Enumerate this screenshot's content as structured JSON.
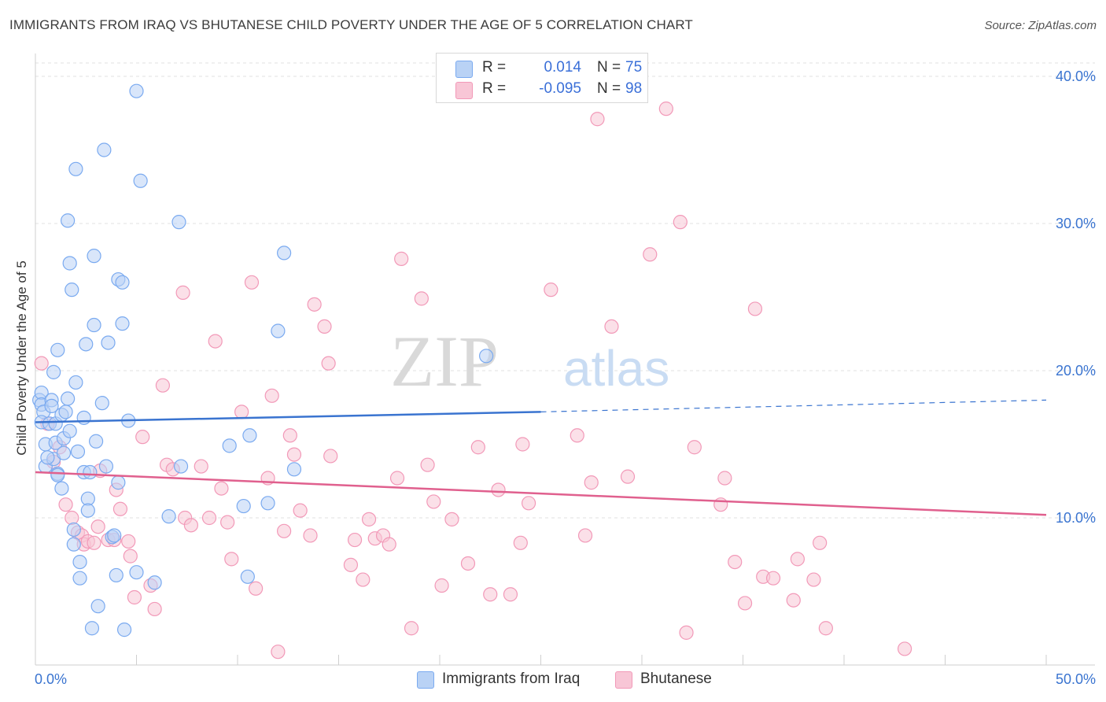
{
  "chart_data": {
    "type": "scatter",
    "title": "IMMIGRANTS FROM IRAQ VS BHUTANESE CHILD POVERTY UNDER THE AGE OF 5 CORRELATION CHART",
    "source": "Source: ZipAtlas.com",
    "xlabel": "",
    "ylabel": "Child Poverty Under the Age of 5",
    "xlim": [
      0,
      50
    ],
    "ylim": [
      0,
      40
    ],
    "x_tick_labels": {
      "min": "0.0%",
      "max": "50.0%"
    },
    "y_ticks": [
      {
        "value": 10,
        "label": "10.0%"
      },
      {
        "value": 20,
        "label": "20.0%"
      },
      {
        "value": 30,
        "label": "30.0%"
      },
      {
        "value": 40,
        "label": "40.0%"
      }
    ],
    "watermark": {
      "part1": "ZIP",
      "part2": "atlas"
    },
    "legend_stats": [
      {
        "series": "Immigrants from Iraq",
        "r_label": "R =",
        "r": "0.014",
        "n_label": "N =",
        "n": "75",
        "color": "#7aaaf0"
      },
      {
        "series": "Bhutanese",
        "r_label": "R =",
        "r": "-0.095",
        "n_label": "N =",
        "n": "98",
        "color": "#f299b8"
      }
    ],
    "series": [
      {
        "name": "Immigrants from Iraq",
        "fill": "#b9d2f5",
        "stroke": "#7aaaf0",
        "line_color": "#3a74d0",
        "trend": {
          "x0": 0,
          "y0": 16.5,
          "x1": 25,
          "y1": 17.2,
          "dash_x1": 50,
          "dash_y1": 18.0
        },
        "points": [
          [
            0.2,
            18.0
          ],
          [
            0.3,
            18.5
          ],
          [
            0.3,
            17.7
          ],
          [
            0.4,
            17.2
          ],
          [
            0.3,
            16.5
          ],
          [
            0.5,
            15.0
          ],
          [
            0.5,
            13.5
          ],
          [
            0.7,
            16.4
          ],
          [
            0.8,
            18.0
          ],
          [
            0.8,
            17.6
          ],
          [
            0.9,
            19.9
          ],
          [
            0.9,
            14.0
          ],
          [
            1.0,
            16.4
          ],
          [
            1.0,
            15.1
          ],
          [
            1.1,
            13.0
          ],
          [
            1.1,
            12.9
          ],
          [
            1.1,
            21.4
          ],
          [
            1.3,
            17.0
          ],
          [
            1.3,
            12.0
          ],
          [
            1.4,
            15.4
          ],
          [
            1.4,
            14.4
          ],
          [
            1.5,
            17.2
          ],
          [
            1.6,
            18.1
          ],
          [
            1.6,
            30.2
          ],
          [
            1.7,
            27.3
          ],
          [
            1.7,
            15.9
          ],
          [
            1.8,
            25.5
          ],
          [
            1.9,
            9.2
          ],
          [
            1.9,
            8.2
          ],
          [
            2.0,
            33.7
          ],
          [
            2.0,
            19.2
          ],
          [
            2.1,
            14.5
          ],
          [
            2.2,
            7.0
          ],
          [
            2.2,
            5.9
          ],
          [
            2.4,
            16.8
          ],
          [
            2.4,
            13.1
          ],
          [
            2.5,
            21.8
          ],
          [
            2.6,
            11.3
          ],
          [
            2.6,
            10.5
          ],
          [
            2.7,
            13.1
          ],
          [
            2.8,
            2.5
          ],
          [
            2.9,
            23.1
          ],
          [
            2.9,
            27.8
          ],
          [
            3.0,
            15.2
          ],
          [
            3.1,
            4.0
          ],
          [
            3.3,
            17.8
          ],
          [
            3.4,
            35.0
          ],
          [
            3.5,
            13.5
          ],
          [
            3.6,
            21.9
          ],
          [
            3.8,
            8.7
          ],
          [
            3.9,
            8.8
          ],
          [
            4.0,
            6.1
          ],
          [
            4.1,
            26.2
          ],
          [
            4.1,
            12.4
          ],
          [
            4.3,
            26.0
          ],
          [
            4.3,
            23.2
          ],
          [
            4.4,
            2.4
          ],
          [
            4.6,
            16.6
          ],
          [
            5.0,
            39.0
          ],
          [
            5.0,
            6.3
          ],
          [
            5.2,
            32.9
          ],
          [
            5.9,
            5.6
          ],
          [
            6.6,
            10.1
          ],
          [
            7.1,
            30.1
          ],
          [
            7.2,
            13.5
          ],
          [
            9.6,
            14.9
          ],
          [
            10.3,
            10.8
          ],
          [
            10.5,
            6.0
          ],
          [
            10.6,
            15.6
          ],
          [
            11.5,
            11.0
          ],
          [
            12.0,
            22.7
          ],
          [
            12.3,
            28.0
          ],
          [
            12.8,
            13.3
          ],
          [
            22.3,
            21.0
          ],
          [
            0.6,
            14.1
          ]
        ]
      },
      {
        "name": "Bhutanese",
        "fill": "#f8c6d6",
        "stroke": "#f299b8",
        "line_color": "#e0608e",
        "trend": {
          "x0": 0,
          "y0": 13.1,
          "x1": 50,
          "y1": 10.2
        },
        "points": [
          [
            0.3,
            20.5
          ],
          [
            0.6,
            16.4
          ],
          [
            0.9,
            13.8
          ],
          [
            1.2,
            14.8
          ],
          [
            1.5,
            10.9
          ],
          [
            1.8,
            10.0
          ],
          [
            2.1,
            9.0
          ],
          [
            2.3,
            8.8
          ],
          [
            2.4,
            8.2
          ],
          [
            2.6,
            8.4
          ],
          [
            2.9,
            8.3
          ],
          [
            3.1,
            9.4
          ],
          [
            3.2,
            13.2
          ],
          [
            3.6,
            8.5
          ],
          [
            3.9,
            8.5
          ],
          [
            4.0,
            11.9
          ],
          [
            4.2,
            10.6
          ],
          [
            4.6,
            8.4
          ],
          [
            4.7,
            7.4
          ],
          [
            4.9,
            4.6
          ],
          [
            5.3,
            15.5
          ],
          [
            5.7,
            5.4
          ],
          [
            5.9,
            3.8
          ],
          [
            6.3,
            19.0
          ],
          [
            6.5,
            13.6
          ],
          [
            6.8,
            13.3
          ],
          [
            7.3,
            25.3
          ],
          [
            7.4,
            10.0
          ],
          [
            7.7,
            9.5
          ],
          [
            8.2,
            13.5
          ],
          [
            8.6,
            10.0
          ],
          [
            8.9,
            22.0
          ],
          [
            9.2,
            12.0
          ],
          [
            9.5,
            9.7
          ],
          [
            9.7,
            7.2
          ],
          [
            10.2,
            17.2
          ],
          [
            10.7,
            26.0
          ],
          [
            10.9,
            5.2
          ],
          [
            11.5,
            12.7
          ],
          [
            11.7,
            18.3
          ],
          [
            12.0,
            0.9
          ],
          [
            12.3,
            9.1
          ],
          [
            12.6,
            15.6
          ],
          [
            12.8,
            14.3
          ],
          [
            13.1,
            10.5
          ],
          [
            13.6,
            8.8
          ],
          [
            13.8,
            24.5
          ],
          [
            14.3,
            23.0
          ],
          [
            14.5,
            20.5
          ],
          [
            14.6,
            14.2
          ],
          [
            15.6,
            6.8
          ],
          [
            15.8,
            8.5
          ],
          [
            16.2,
            5.8
          ],
          [
            16.5,
            9.9
          ],
          [
            16.8,
            8.6
          ],
          [
            17.2,
            8.8
          ],
          [
            17.5,
            8.2
          ],
          [
            17.9,
            12.7
          ],
          [
            18.1,
            27.6
          ],
          [
            18.6,
            2.5
          ],
          [
            19.1,
            24.9
          ],
          [
            19.4,
            13.6
          ],
          [
            19.7,
            11.1
          ],
          [
            20.1,
            5.4
          ],
          [
            20.6,
            9.9
          ],
          [
            21.4,
            6.9
          ],
          [
            21.9,
            14.8
          ],
          [
            22.5,
            4.8
          ],
          [
            22.9,
            11.9
          ],
          [
            23.5,
            4.8
          ],
          [
            24.0,
            8.3
          ],
          [
            24.1,
            15.0
          ],
          [
            24.4,
            11.0
          ],
          [
            25.5,
            25.5
          ],
          [
            26.8,
            15.6
          ],
          [
            27.2,
            8.8
          ],
          [
            27.5,
            12.4
          ],
          [
            27.8,
            37.1
          ],
          [
            28.5,
            23.0
          ],
          [
            29.3,
            12.8
          ],
          [
            30.4,
            27.9
          ],
          [
            31.2,
            37.8
          ],
          [
            31.9,
            30.1
          ],
          [
            32.2,
            2.2
          ],
          [
            32.6,
            14.8
          ],
          [
            33.9,
            10.9
          ],
          [
            34.1,
            12.7
          ],
          [
            34.6,
            7.0
          ],
          [
            35.1,
            4.2
          ],
          [
            35.6,
            24.2
          ],
          [
            36.0,
            6.0
          ],
          [
            36.5,
            5.9
          ],
          [
            37.5,
            4.4
          ],
          [
            37.7,
            7.2
          ],
          [
            38.5,
            5.8
          ],
          [
            38.8,
            8.3
          ],
          [
            39.1,
            2.5
          ],
          [
            43.0,
            1.1
          ]
        ]
      }
    ]
  }
}
